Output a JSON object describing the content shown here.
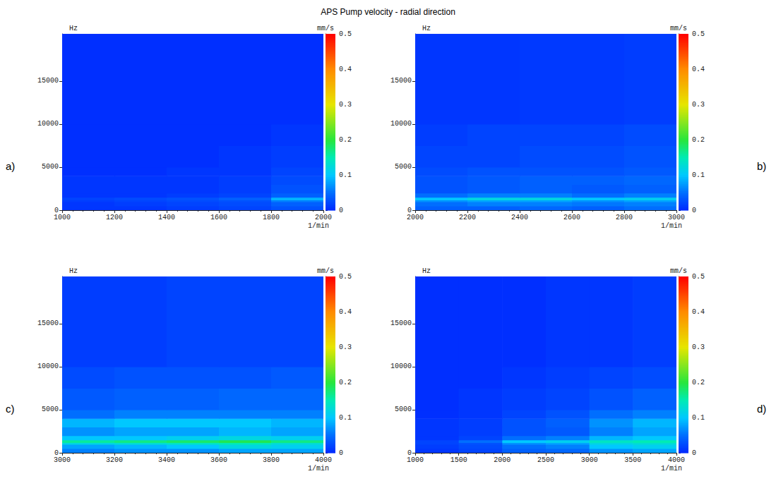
{
  "title": "APS Pump velocity - radial direction",
  "chart_data": [
    {
      "type": "heatmap",
      "panel_label": "a)",
      "x_label": "1/min",
      "y_label": "Hz",
      "xlim": [
        1000,
        2000
      ],
      "xticks": [
        1000,
        1200,
        1400,
        1600,
        1800,
        2000
      ],
      "ylim": [
        0,
        20480
      ],
      "yticks": [
        0,
        5000,
        10000,
        15000
      ],
      "x_edges": [
        1000,
        1200,
        1400,
        1600,
        1800,
        2000
      ],
      "y_edges": [
        0,
        500,
        1000,
        1200,
        1500,
        2000,
        3000,
        4000,
        5000,
        7500,
        10000,
        20480
      ],
      "cells": [
        [
          0.01,
          0.01,
          0.015,
          0.02,
          0.03
        ],
        [
          0.01,
          0.015,
          0.02,
          0.025,
          0.04
        ],
        [
          0.015,
          0.02,
          0.025,
          0.03,
          0.06
        ],
        [
          0.02,
          0.025,
          0.03,
          0.04,
          0.09
        ],
        [
          0.01,
          0.01,
          0.015,
          0.02,
          0.04
        ],
        [
          0.01,
          0.01,
          0.01,
          0.015,
          0.03
        ],
        [
          0.01,
          0.01,
          0.01,
          0.015,
          0.025
        ],
        [
          0.005,
          0.005,
          0.01,
          0.01,
          0.02
        ],
        [
          0.005,
          0.005,
          0.005,
          0.01,
          0.015
        ],
        [
          0.005,
          0.005,
          0.005,
          0.005,
          0.01
        ],
        [
          0.005,
          0.005,
          0.005,
          0.005,
          0.005
        ]
      ],
      "colorbar": {
        "label": "mm/s",
        "range": [
          0,
          0.5
        ],
        "ticks": [
          0,
          0.1,
          0.2,
          0.3,
          0.4,
          0.5
        ]
      }
    },
    {
      "type": "heatmap",
      "panel_label": "b)",
      "x_label": "1/min",
      "y_label": "Hz",
      "xlim": [
        2000,
        3000
      ],
      "xticks": [
        2000,
        2200,
        2400,
        2600,
        2800,
        3000
      ],
      "ylim": [
        0,
        20480
      ],
      "yticks": [
        0,
        5000,
        10000,
        15000
      ],
      "x_edges": [
        2000,
        2200,
        2400,
        2600,
        2800,
        3000
      ],
      "y_edges": [
        0,
        500,
        1000,
        1200,
        1500,
        2000,
        3000,
        4000,
        5000,
        7500,
        10000,
        20480
      ],
      "cells": [
        [
          0.04,
          0.04,
          0.045,
          0.04,
          0.05
        ],
        [
          0.05,
          0.06,
          0.06,
          0.055,
          0.06
        ],
        [
          0.07,
          0.08,
          0.08,
          0.07,
          0.08
        ],
        [
          0.1,
          0.12,
          0.12,
          0.1,
          0.11
        ],
        [
          0.05,
          0.06,
          0.06,
          0.05,
          0.06
        ],
        [
          0.03,
          0.035,
          0.04,
          0.035,
          0.04
        ],
        [
          0.03,
          0.035,
          0.04,
          0.04,
          0.045
        ],
        [
          0.025,
          0.03,
          0.03,
          0.03,
          0.035
        ],
        [
          0.02,
          0.02,
          0.025,
          0.025,
          0.03
        ],
        [
          0.015,
          0.02,
          0.02,
          0.02,
          0.025
        ],
        [
          0.01,
          0.01,
          0.012,
          0.012,
          0.015
        ]
      ],
      "colorbar": {
        "label": "mm/s",
        "range": [
          0,
          0.5
        ],
        "ticks": [
          0,
          0.1,
          0.2,
          0.3,
          0.4,
          0.5
        ]
      }
    },
    {
      "type": "heatmap",
      "panel_label": "c)",
      "x_label": "1/min",
      "y_label": "Hz",
      "xlim": [
        3000,
        4000
      ],
      "xticks": [
        3000,
        3200,
        3400,
        3600,
        3800,
        4000
      ],
      "ylim": [
        0,
        20480
      ],
      "yticks": [
        0,
        5000,
        10000,
        15000
      ],
      "x_edges": [
        3000,
        3200,
        3400,
        3600,
        3800,
        4000
      ],
      "y_edges": [
        0,
        500,
        1000,
        1200,
        1500,
        2000,
        3000,
        4000,
        5000,
        7500,
        10000,
        20480
      ],
      "cells": [
        [
          0.06,
          0.07,
          0.07,
          0.08,
          0.08
        ],
        [
          0.08,
          0.09,
          0.1,
          0.12,
          0.11
        ],
        [
          0.12,
          0.13,
          0.14,
          0.15,
          0.13
        ],
        [
          0.16,
          0.17,
          0.18,
          0.19,
          0.17
        ],
        [
          0.1,
          0.1,
          0.11,
          0.12,
          0.11
        ],
        [
          0.07,
          0.08,
          0.08,
          0.09,
          0.08
        ],
        [
          0.09,
          0.1,
          0.1,
          0.1,
          0.09
        ],
        [
          0.05,
          0.06,
          0.06,
          0.06,
          0.06
        ],
        [
          0.035,
          0.04,
          0.04,
          0.045,
          0.045
        ],
        [
          0.025,
          0.03,
          0.03,
          0.03,
          0.035
        ],
        [
          0.015,
          0.015,
          0.02,
          0.02,
          0.02
        ]
      ],
      "colorbar": {
        "label": "mm/s",
        "range": [
          0,
          0.5
        ],
        "ticks": [
          0,
          0.1,
          0.2,
          0.3,
          0.4,
          0.5
        ]
      }
    },
    {
      "type": "heatmap",
      "panel_label": "d)",
      "x_label": "1/min",
      "y_label": "Hz",
      "xlim": [
        1000,
        4000
      ],
      "xticks": [
        1000,
        1500,
        2000,
        2500,
        3000,
        3500,
        4000
      ],
      "ylim": [
        0,
        20480
      ],
      "yticks": [
        0,
        5000,
        10000,
        15000
      ],
      "x_edges": [
        1000,
        1500,
        2000,
        2500,
        3000,
        3500,
        4000
      ],
      "y_edges": [
        0,
        500,
        1000,
        1200,
        1500,
        2000,
        3000,
        4000,
        5000,
        7500,
        10000,
        20480
      ],
      "cells": [
        [
          0.01,
          0.02,
          0.04,
          0.045,
          0.07,
          0.08
        ],
        [
          0.015,
          0.025,
          0.05,
          0.06,
          0.1,
          0.11
        ],
        [
          0.02,
          0.03,
          0.07,
          0.08,
          0.12,
          0.13
        ],
        [
          0.02,
          0.05,
          0.1,
          0.11,
          0.14,
          0.15
        ],
        [
          0.01,
          0.02,
          0.05,
          0.06,
          0.09,
          0.1
        ],
        [
          0.01,
          0.015,
          0.03,
          0.035,
          0.06,
          0.08
        ],
        [
          0.01,
          0.015,
          0.03,
          0.04,
          0.07,
          0.09
        ],
        [
          0.005,
          0.01,
          0.02,
          0.03,
          0.05,
          0.06
        ],
        [
          0.005,
          0.01,
          0.015,
          0.02,
          0.03,
          0.04
        ],
        [
          0.005,
          0.005,
          0.01,
          0.015,
          0.02,
          0.025
        ],
        [
          0.005,
          0.005,
          0.005,
          0.01,
          0.01,
          0.015
        ]
      ],
      "colorbar": {
        "label": "mm/s",
        "range": [
          0,
          0.5
        ],
        "ticks": [
          0,
          0.1,
          0.2,
          0.3,
          0.4,
          0.5
        ]
      }
    }
  ]
}
